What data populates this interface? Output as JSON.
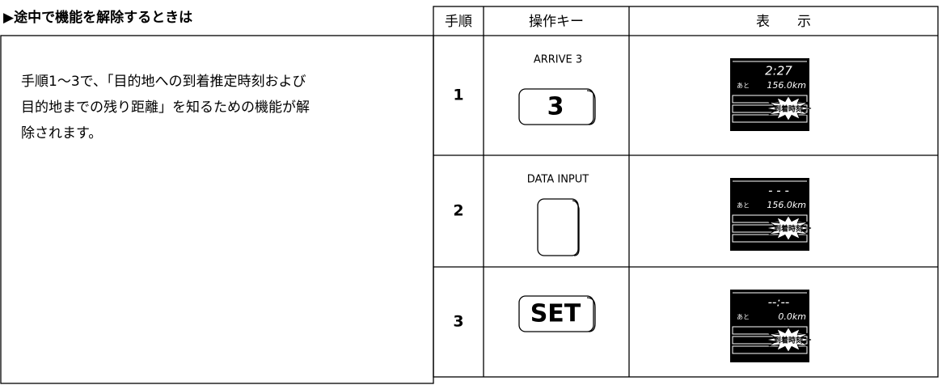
{
  "heading": "▶途中で機能を解除するときは",
  "description": [
    "手順1～3で、「目的地への到着推定時刻および",
    "目的地までの残り距離」を知るための機能が解",
    "除されます。"
  ],
  "table": {
    "headers": [
      "手順",
      "操作キー",
      "表　　示"
    ],
    "rows": [
      {
        "step": "1",
        "key_label": "ARRIVE 3",
        "key_text": "3",
        "display": {
          "main": "2:27",
          "prefix": "あと",
          "distance": "156.0km",
          "badge": "到着時刻"
        }
      },
      {
        "step": "2",
        "key_label": "DATA INPUT",
        "display": {
          "main": "- - -",
          "prefix": "あと",
          "distance": "156.0km",
          "badge": "到着時刻"
        }
      },
      {
        "step": "3",
        "key_text": "SET",
        "display": {
          "main": "--:--",
          "prefix": "あと",
          "distance": "0.0km",
          "badge": "到着時刻"
        }
      }
    ]
  }
}
